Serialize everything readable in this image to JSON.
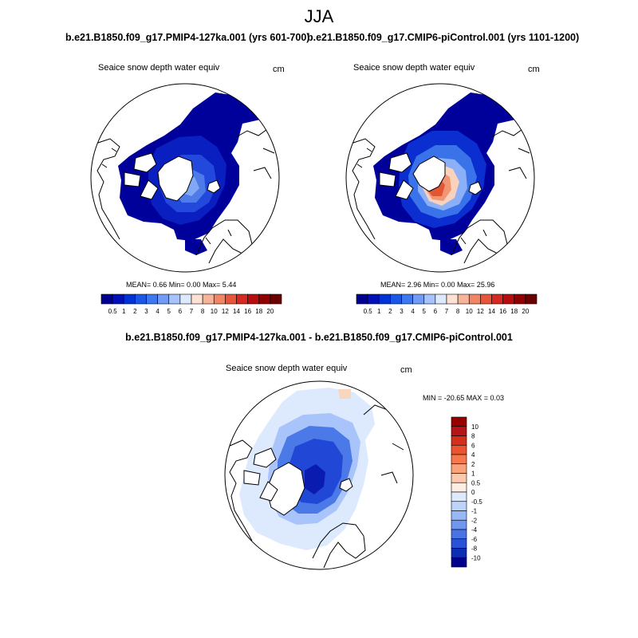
{
  "figure": {
    "season_title": "JJA"
  },
  "panel_left": {
    "case_title": "b.e21.B1850.f09_g17.PMIP4-127ka.001 (yrs 601-700)",
    "variable": "Seaice snow depth water equiv",
    "units": "cm",
    "stats": "MEAN=   0.66  Min=    0.00  Max=    5.44"
  },
  "panel_right": {
    "case_title": "b.e21.B1850.f09_g17.CMIP6-piControl.001 (yrs 1101-1200)",
    "variable": "Seaice snow depth water equiv",
    "units": "cm",
    "stats": "MEAN=   2.96  Min=    0.00  Max=   25.96"
  },
  "panel_diff": {
    "title": "b.e21.B1850.f09_g17.PMIP4-127ka.001 - b.e21.B1850.f09_g17.CMIP6-piControl.001",
    "variable": "Seaice snow depth water equiv",
    "units": "cm",
    "minmax": "MIN = -20.65 MAX =    0.03"
  },
  "chart_data": [
    {
      "type": "heatmap",
      "title": "b.e21.B1850.f09_g17.PMIP4-127ka.001 (yrs 601-700)",
      "variable": "Seaice snow depth water equiv",
      "units": "cm",
      "projection": "north polar stereographic",
      "stats": {
        "mean": 0.66,
        "min": 0.0,
        "max": 5.44
      },
      "colorbar": {
        "levels": [
          "0.5",
          "1",
          "2",
          "3",
          "4",
          "5",
          "6",
          "7",
          "8",
          "10",
          "12",
          "14",
          "16",
          "18",
          "20"
        ],
        "colors": [
          "#00008f",
          "#0010b5",
          "#0033d6",
          "#1a57e6",
          "#3d78f0",
          "#709cf7",
          "#a6c4fb",
          "#dde9fd",
          "#fde2d3",
          "#f8b498",
          "#f28563",
          "#e8553a",
          "#d62a1f",
          "#b80d0d",
          "#900000",
          "#6b0000"
        ]
      }
    },
    {
      "type": "heatmap",
      "title": "b.e21.B1850.f09_g17.CMIP6-piControl.001 (yrs 1101-1200)",
      "variable": "Seaice snow depth water equiv",
      "units": "cm",
      "projection": "north polar stereographic",
      "stats": {
        "mean": 2.96,
        "min": 0.0,
        "max": 25.96
      },
      "colorbar": {
        "levels": [
          "0.5",
          "1",
          "2",
          "3",
          "4",
          "5",
          "6",
          "7",
          "8",
          "10",
          "12",
          "14",
          "16",
          "18",
          "20"
        ],
        "colors": [
          "#00008f",
          "#0010b5",
          "#0033d6",
          "#1a57e6",
          "#3d78f0",
          "#709cf7",
          "#a6c4fb",
          "#dde9fd",
          "#fde2d3",
          "#f8b498",
          "#f28563",
          "#e8553a",
          "#d62a1f",
          "#b80d0d",
          "#900000",
          "#6b0000"
        ]
      }
    },
    {
      "type": "heatmap",
      "title": "b.e21.B1850.f09_g17.PMIP4-127ka.001 - b.e21.B1850.f09_g17.CMIP6-piControl.001",
      "variable": "Seaice snow depth water equiv",
      "units": "cm",
      "projection": "north polar stereographic",
      "stats": {
        "min": -20.65,
        "max": 0.03
      },
      "colorbar": {
        "levels": [
          "10",
          "8",
          "6",
          "4",
          "2",
          "1",
          "0.5",
          "0",
          "-0.5",
          "-1",
          "-2",
          "-4",
          "-6",
          "-8",
          "-10"
        ],
        "colors": [
          "#960000",
          "#b51515",
          "#d42f1c",
          "#ec5330",
          "#f6784d",
          "#f9a27c",
          "#fbc9ad",
          "#fdeee2",
          "#ddeafd",
          "#bcd3fb",
          "#97b8f7",
          "#6f97f0",
          "#4a74e6",
          "#2a51d6",
          "#0f2cb5",
          "#00008f"
        ]
      }
    }
  ]
}
